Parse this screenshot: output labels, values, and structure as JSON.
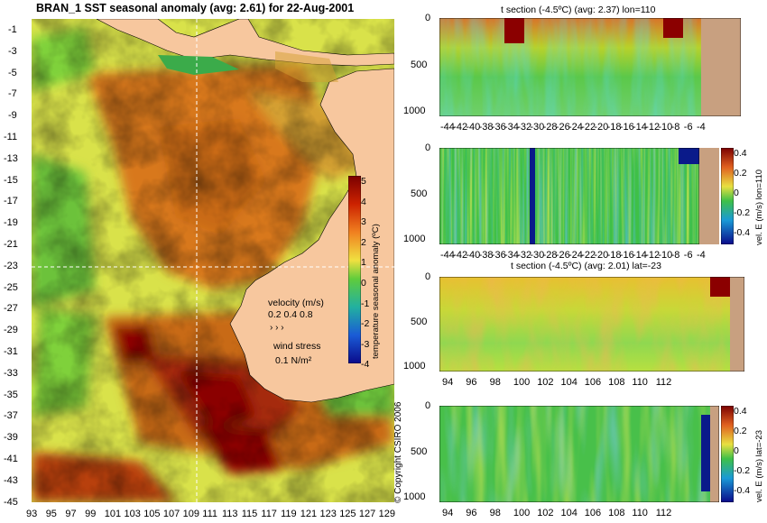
{
  "main_map": {
    "title": "BRAN_1  SST seasonal anomaly  (avg: 2.61) for 22-Aug-2001",
    "lat_ticks": [
      "-1",
      "-3",
      "-5",
      "-7",
      "-9",
      "-11",
      "-13",
      "-15",
      "-17",
      "-19",
      "-21",
      "-23",
      "-25",
      "-27",
      "-29",
      "-31",
      "-33",
      "-35",
      "-37",
      "-39",
      "-41",
      "-43",
      "-45"
    ],
    "lon_ticks": [
      "93",
      "95",
      "97",
      "99",
      "101",
      "103",
      "105",
      "107",
      "109",
      "111",
      "113",
      "115",
      "117",
      "119",
      "121",
      "123",
      "125",
      "127",
      "129"
    ],
    "colorbar": {
      "label": "temperature seasonal anomaly (ºC)",
      "ticks": [
        "5",
        "4",
        "3",
        "2",
        "1",
        "0",
        "-1",
        "-2",
        "-3",
        "-4"
      ]
    },
    "velocity_key": {
      "title": "velocity (m/s)",
      "values": "0.2 0.4 0.8"
    },
    "wind_key": {
      "title": "wind stress",
      "value": "0.1 N/m²"
    },
    "crosshair": {
      "lon": 110,
      "lat": -23
    },
    "copyright": "© Copyright CSIRO 2006",
    "colors": {
      "land": "#f7c79e",
      "hot": "#8b0000",
      "warm": "#d4781e",
      "neutral": "#7fd13b",
      "cool": "#28a04a",
      "cold": "#00008b"
    }
  },
  "panels": [
    {
      "title": "t section (-4.5ºC) (avg: 2.37) lon=110",
      "depth_ticks": [
        "0",
        "500",
        "1000"
      ],
      "x_ticks": [
        "-44",
        "-42",
        "-40",
        "-38",
        "-36",
        "-34",
        "-32",
        "-30",
        "-28",
        "-26",
        "-24",
        "-22",
        "-20",
        "-18",
        "-16",
        "-14",
        "-12",
        "-10",
        "-8",
        "-6",
        "-4"
      ]
    },
    {
      "title": "",
      "depth_ticks": [
        "0",
        "500",
        "1000"
      ],
      "x_ticks": [
        "-44",
        "-42",
        "-40",
        "-38",
        "-36",
        "-34",
        "-32",
        "-30",
        "-28",
        "-26",
        "-24",
        "-22",
        "-20",
        "-18",
        "-16",
        "-14",
        "-12",
        "-10",
        "-8",
        "-6",
        "-4"
      ],
      "colorbar": {
        "label": "vel. E (m/s) lon=110",
        "ticks": [
          "0.4",
          "0.2",
          "0",
          "-0.2",
          "-0.4"
        ]
      }
    },
    {
      "title": "t section (-4.5ºC) (avg: 2.01) lat=-23",
      "depth_ticks": [
        "0",
        "500",
        "1000"
      ],
      "x_ticks": [
        "94",
        "96",
        "98",
        "100",
        "102",
        "104",
        "106",
        "108",
        "110",
        "112"
      ]
    },
    {
      "title": "",
      "depth_ticks": [
        "0",
        "500",
        "1000"
      ],
      "x_ticks": [
        "94",
        "96",
        "98",
        "100",
        "102",
        "104",
        "106",
        "108",
        "110",
        "112"
      ],
      "colorbar": {
        "label": "vel. E (m/s) lat=-23",
        "ticks": [
          "0.4",
          "0.2",
          "0",
          "-0.2",
          "-0.4"
        ]
      }
    }
  ]
}
